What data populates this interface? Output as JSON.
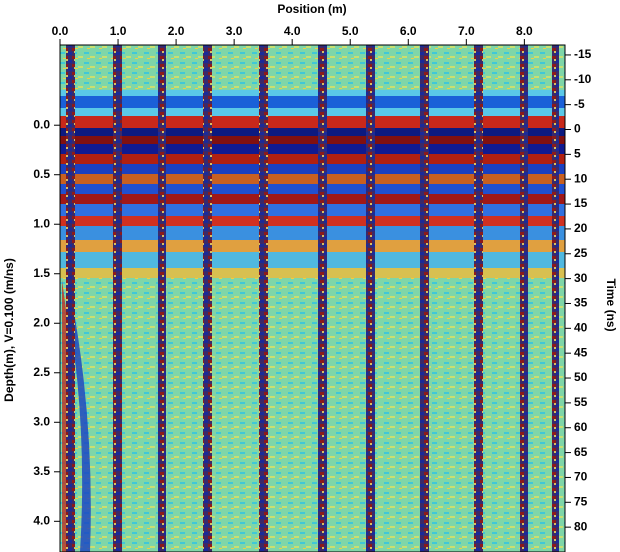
{
  "chart_data": {
    "type": "radargram",
    "x_label": "Position (m)",
    "y_label": "Depth(m), V=0.100 (m/ns)",
    "y2_label": "Time (ns)",
    "xlim": [
      0,
      8.7
    ],
    "xticks": [
      {
        "value": 0,
        "label": "0.0"
      },
      {
        "value": 1,
        "label": "1.0"
      },
      {
        "value": 2,
        "label": "2.0"
      },
      {
        "value": 3,
        "label": "3.0"
      },
      {
        "value": 4,
        "label": "4.0"
      },
      {
        "value": 5,
        "label": "5.0"
      },
      {
        "value": 6,
        "label": "6.0"
      },
      {
        "value": 7,
        "label": "7.0"
      },
      {
        "value": 8,
        "label": "8.0"
      }
    ],
    "ylim": [
      4.31,
      -0.81
    ],
    "yticks": [
      {
        "value": 0,
        "label": "0.0"
      },
      0.5,
      {
        "value": 1,
        "label": "1.0"
      },
      1.5,
      {
        "value": 2,
        "label": "2.0"
      },
      2.5,
      {
        "value": 3,
        "label": "3.0"
      },
      3.5,
      {
        "value": 4,
        "label": "4.0"
      }
    ],
    "y2lim": [
      85,
      -17
    ],
    "y2ticks": [
      -15,
      -10,
      -5,
      0,
      5,
      10,
      15,
      20,
      25,
      30,
      35,
      40,
      45,
      50,
      55,
      60,
      65,
      70,
      75,
      80
    ]
  }
}
